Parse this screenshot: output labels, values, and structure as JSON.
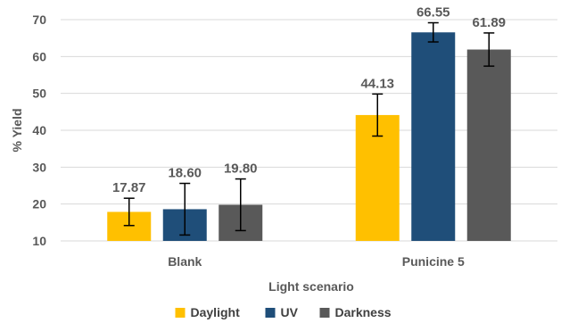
{
  "chart_data": {
    "type": "bar",
    "categories": [
      "Blank",
      "Punicine 5"
    ],
    "series": [
      {
        "name": "Daylight",
        "values": [
          17.87,
          44.13
        ],
        "errors": [
          3.7,
          5.7
        ],
        "color": "#FFC000"
      },
      {
        "name": "UV",
        "values": [
          18.6,
          66.55
        ],
        "errors": [
          7.0,
          2.6
        ],
        "color": "#1F4E79"
      },
      {
        "name": "Darkness",
        "values": [
          19.8,
          61.89
        ],
        "errors": [
          7.0,
          4.5
        ],
        "color": "#595959"
      }
    ],
    "data_labels": [
      [
        "17.87",
        "44.13"
      ],
      [
        "18.60",
        "66.55"
      ],
      [
        "19.80",
        "61.89"
      ]
    ],
    "xlabel": "Light scenario",
    "ylabel": "% Yield",
    "ylim": [
      10,
      70
    ],
    "yticks": [
      "10",
      "20",
      "30",
      "40",
      "50",
      "60",
      "70"
    ],
    "grid": true,
    "legend_position": "bottom"
  }
}
